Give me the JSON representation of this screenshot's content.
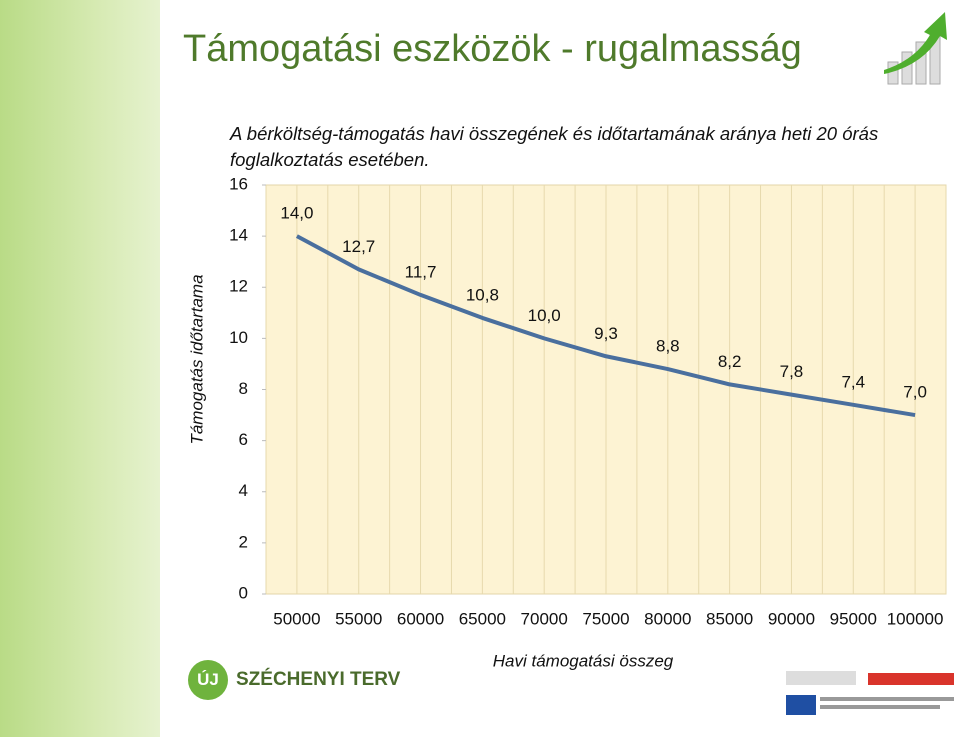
{
  "header": {
    "title": "Támogatási eszközök - rugalmasság"
  },
  "footer": {
    "logo_mark": "ÚJ",
    "logo_text": "SZÉCHENYI TERV"
  },
  "chart_data": {
    "type": "line",
    "title": "A bérköltség-támogatás havi összegének és időtartamának aránya heti 20 órás foglalkoztatás esetében.",
    "x_label": "Havi támogatási összeg",
    "y_label": "Támogatás időtartama",
    "categories": [
      "50000",
      "55000",
      "60000",
      "65000",
      "70000",
      "75000",
      "80000",
      "85000",
      "90000",
      "95000",
      "100000"
    ],
    "values": [
      14.0,
      12.7,
      11.7,
      10.8,
      10.0,
      9.3,
      8.8,
      8.2,
      7.8,
      7.4,
      7.0
    ],
    "value_labels": [
      "14,0",
      "12,7",
      "11,7",
      "10,8",
      "10,0",
      "9,3",
      "8,8",
      "8,2",
      "7,8",
      "7,4",
      "7,0"
    ],
    "color": "#4a6f9e",
    "ylim": [
      0,
      16
    ],
    "yticks": [
      0,
      2,
      4,
      6,
      8,
      10,
      12,
      14,
      16
    ]
  }
}
